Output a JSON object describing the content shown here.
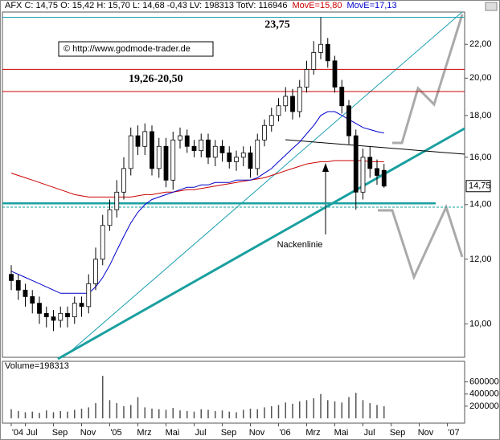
{
  "chart_data": {
    "type": "candlestick",
    "header": [
      {
        "text": "AFX C: 14,75 O: 15,42 H: 15,70 L: 14,68 -0,43 LV: 198313 TotV: 116946",
        "color": "#000000"
      },
      {
        "text": "MovE=15,80",
        "color": "#cc0000"
      },
      {
        "text": "MovE=17,13",
        "color": "#0000cc"
      }
    ],
    "categories": [
      "'04",
      null,
      "Jul",
      null,
      null,
      null,
      "Sep",
      null,
      null,
      null,
      "Nov",
      null,
      null,
      null,
      "'05",
      null,
      null,
      null,
      "Mrz",
      null,
      null,
      null,
      "Mai",
      null,
      null,
      null,
      "Jul",
      null,
      null,
      null,
      "Sep",
      null,
      null,
      null,
      "Nov",
      null,
      null,
      null,
      "'06",
      null,
      null,
      null,
      "Mrz",
      null,
      null,
      null,
      "Mai",
      null,
      null,
      null,
      "Jul",
      null,
      null,
      null,
      "Sep",
      null,
      null,
      null,
      "Nov",
      null,
      null,
      null,
      "'07",
      null,
      null,
      null
    ],
    "open": [
      11.5,
      11.3,
      11.0,
      10.8,
      10.6,
      10.3,
      10.2,
      10.1,
      10.3,
      10.2,
      10.6,
      10.5,
      11.2,
      12.0,
      13.2,
      13.8,
      14.5,
      15.5,
      17.0,
      16.5,
      17.2,
      15.5,
      16.5,
      15.0,
      16.8,
      17.0,
      16.5,
      16.3,
      16.8,
      16.0,
      16.5,
      16.2,
      15.8,
      16.0,
      16.2,
      15.5,
      16.8,
      17.5,
      18.0,
      18.5,
      19.0,
      18.2,
      19.5,
      20.5,
      21.5,
      22.0,
      21.0,
      19.5,
      18.5,
      17.0,
      14.5,
      16.0,
      15.5,
      15.42,
      null,
      null,
      null,
      null,
      null,
      null,
      null,
      null,
      null,
      null,
      null,
      null
    ],
    "high": [
      11.8,
      11.5,
      11.2,
      11.0,
      10.8,
      10.5,
      10.4,
      10.5,
      10.5,
      10.8,
      10.8,
      11.5,
      12.4,
      13.6,
      14.2,
      15.0,
      16.0,
      17.4,
      17.5,
      17.6,
      17.5,
      16.9,
      16.9,
      17.2,
      17.4,
      17.3,
      16.8,
      17.1,
      17.1,
      16.8,
      16.8,
      16.5,
      16.3,
      16.5,
      16.5,
      17.1,
      17.8,
      18.4,
      18.9,
      19.5,
      19.4,
      19.9,
      21.0,
      22.2,
      23.75,
      22.4,
      21.3,
      19.9,
      18.8,
      17.3,
      16.4,
      16.5,
      15.9,
      15.7,
      null,
      null,
      null,
      null,
      null,
      null,
      null,
      null,
      null,
      null,
      null,
      null
    ],
    "low": [
      11.0,
      10.7,
      10.5,
      10.3,
      10.0,
      9.9,
      9.8,
      9.9,
      9.9,
      10.0,
      10.2,
      10.3,
      11.0,
      11.8,
      13.0,
      13.5,
      14.2,
      15.2,
      16.1,
      16.1,
      15.2,
      15.1,
      14.7,
      14.6,
      16.4,
      16.2,
      16.0,
      16.0,
      15.7,
      15.6,
      15.8,
      15.5,
      15.4,
      15.6,
      15.1,
      15.2,
      16.5,
      17.2,
      17.7,
      18.2,
      17.8,
      17.9,
      19.2,
      20.2,
      21.1,
      20.6,
      19.2,
      18.1,
      16.6,
      13.8,
      14.2,
      15.1,
      14.8,
      14.68,
      null,
      null,
      null,
      null,
      null,
      null,
      null,
      null,
      null,
      null,
      null,
      null
    ],
    "close": [
      11.3,
      11.0,
      10.8,
      10.6,
      10.3,
      10.2,
      10.1,
      10.3,
      10.2,
      10.6,
      10.5,
      11.2,
      12.0,
      13.2,
      13.8,
      14.5,
      15.5,
      17.0,
      16.5,
      17.2,
      15.5,
      16.5,
      15.0,
      16.8,
      17.0,
      16.5,
      16.3,
      16.8,
      16.0,
      16.5,
      16.2,
      15.8,
      16.0,
      16.2,
      15.5,
      16.8,
      17.5,
      18.0,
      18.5,
      19.0,
      18.2,
      19.5,
      20.5,
      21.5,
      22.0,
      21.0,
      19.5,
      18.5,
      17.0,
      14.5,
      16.0,
      15.5,
      15.2,
      14.75,
      null,
      null,
      null,
      null,
      null,
      null,
      null,
      null,
      null,
      null,
      null,
      null
    ],
    "up_color": "#ffffff",
    "down_color": "#000000",
    "moving_averages": [
      {
        "color": "#cc0000",
        "values": [
          15.3,
          15.2,
          15.1,
          15.0,
          14.9,
          14.8,
          14.7,
          14.6,
          14.5,
          14.4,
          14.35,
          14.3,
          14.3,
          14.3,
          14.3,
          14.3,
          14.3,
          14.3,
          14.35,
          14.4,
          14.4,
          14.45,
          14.5,
          14.5,
          14.55,
          14.6,
          14.6,
          14.65,
          14.7,
          14.75,
          14.8,
          14.85,
          14.9,
          14.95,
          15.0,
          15.05,
          15.1,
          15.2,
          15.3,
          15.4,
          15.5,
          15.6,
          15.7,
          15.75,
          15.8,
          15.8,
          15.85,
          15.85,
          15.85,
          15.85,
          15.85,
          15.8,
          15.8,
          15.8,
          null,
          null,
          null,
          null,
          null,
          null,
          null,
          null,
          null,
          null,
          null,
          null
        ]
      },
      {
        "color": "#0000cc",
        "values": [
          11.6,
          11.5,
          11.4,
          11.3,
          11.2,
          11.1,
          11.0,
          10.9,
          10.9,
          10.9,
          10.9,
          10.9,
          11.1,
          11.4,
          11.8,
          12.3,
          12.8,
          13.3,
          13.7,
          14.0,
          14.2,
          14.3,
          14.4,
          14.5,
          14.6,
          14.7,
          14.7,
          14.8,
          14.8,
          14.9,
          14.9,
          14.9,
          15.0,
          15.0,
          15.0,
          15.1,
          15.3,
          15.5,
          15.8,
          16.1,
          16.4,
          16.7,
          17.1,
          17.5,
          18.0,
          18.2,
          18.2,
          18.0,
          17.8,
          17.6,
          17.4,
          17.3,
          17.2,
          17.13,
          null,
          null,
          null,
          null,
          null,
          null,
          null,
          null,
          null,
          null,
          null,
          null
        ]
      }
    ],
    "hlines": [
      {
        "value": 23.75,
        "label": "23,75",
        "color": "#1a9fb0",
        "style": "thin"
      },
      {
        "value": 20.5,
        "color": "#cc0000",
        "style": "thin"
      },
      {
        "value": 19.26,
        "color": "#cc0000",
        "style": "thin"
      },
      {
        "value": 14.05,
        "color": "#1a9f9f",
        "style": "thick"
      },
      {
        "value": 13.9,
        "color": "#1a9f9f",
        "style": "dashed"
      }
    ],
    "range_label": "19,26-20,50",
    "copyright": "© http://www.godmode-trader.de",
    "neckline_label": "Nackenlinie",
    "last_price": {
      "value": 14.75,
      "label": "14,75"
    },
    "ylim": [
      9.1,
      24.1
    ],
    "log_scale": true,
    "yticks": [
      {
        "value": 10,
        "label": "10,00"
      },
      {
        "value": 12,
        "label": "12,00"
      },
      {
        "value": 14,
        "label": "14,00"
      },
      {
        "value": 16,
        "label": "16,00"
      },
      {
        "value": 18,
        "label": "18,00"
      },
      {
        "value": 20,
        "label": "20,00"
      },
      {
        "value": 22,
        "label": "22,00"
      }
    ],
    "volume": {
      "title": "Volume=198313",
      "color": "#555555",
      "values": [
        150000,
        120000,
        100000,
        110000,
        90000,
        130000,
        100000,
        120000,
        110000,
        140000,
        160000,
        180000,
        250000,
        700000,
        300000,
        250000,
        200000,
        220000,
        350000,
        180000,
        160000,
        150000,
        140000,
        170000,
        130000,
        120000,
        110000,
        150000,
        140000,
        120000,
        130000,
        110000,
        100000,
        140000,
        160000,
        150000,
        180000,
        200000,
        220000,
        260000,
        240000,
        280000,
        300000,
        330000,
        400000,
        300000,
        280000,
        260000,
        350000,
        420000,
        300000,
        250000,
        220000,
        198313,
        null,
        null,
        null,
        null,
        null,
        null,
        null,
        null,
        null,
        null,
        null,
        null
      ],
      "ylim": [
        0,
        780000
      ],
      "yticks": [
        200000,
        400000,
        600000
      ]
    }
  }
}
